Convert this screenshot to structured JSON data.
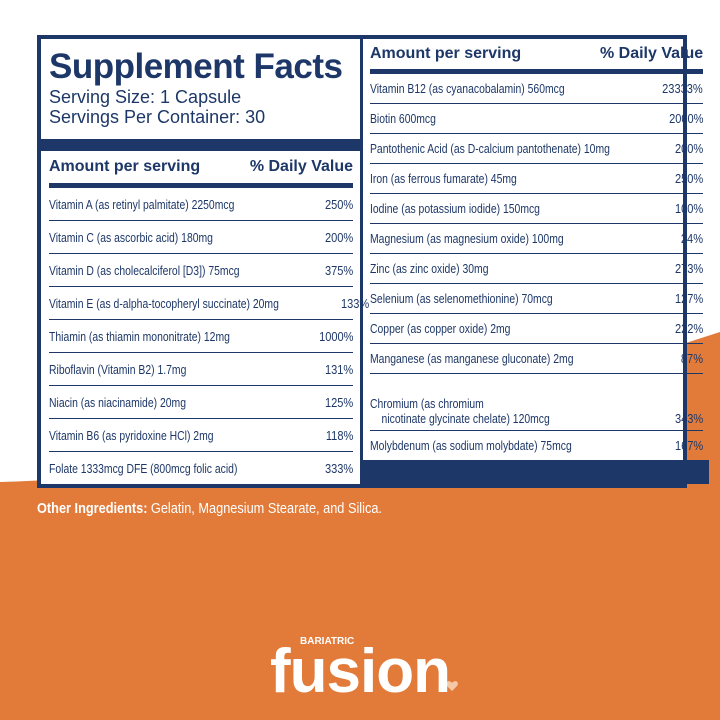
{
  "header": {
    "title": "Supplement Facts",
    "serving_size": "Serving Size: 1 Capsule",
    "servings_per_container": "Servings Per Container: 30"
  },
  "left": {
    "header": {
      "amount": "Amount per serving",
      "dv": "% Daily Value"
    },
    "rows": [
      [
        "Vitamin A (as retinyl palmitate) 2250mcg",
        "250%"
      ],
      [
        "Vitamin C (as ascorbic acid) 180mg",
        "200%"
      ],
      [
        "Vitamin D (as cholecalciferol [D3]) 75mcg",
        "375%"
      ],
      [
        "Vitamin E (as d-alpha-tocopheryl succinate) 20mg",
        "133%"
      ],
      [
        "Thiamin (as thiamin mononitrate) 12mg",
        "1000%"
      ],
      [
        "Riboflavin (Vitamin B2) 1.7mg",
        "131%"
      ],
      [
        "Niacin (as niacinamide) 20mg",
        "125%"
      ],
      [
        "Vitamin B6 (as pyridoxine HCl) 2mg",
        "118%"
      ],
      [
        "Folate 1333mcg DFE (800mcg folic acid)",
        "333%"
      ]
    ]
  },
  "right": {
    "header": {
      "amount": "Amount per serving",
      "dv": "% Daily Value"
    },
    "rows": [
      [
        "Vitamin B12 (as cyanacobalamin) 560mcg",
        "23333%"
      ],
      [
        "Biotin 600mcg",
        "2000%"
      ],
      [
        "Pantothenic Acid (as D-calcium pantothenate) 10mg",
        "200%"
      ],
      [
        "Iron (as ferrous fumarate) 45mg",
        "250%"
      ],
      [
        "Iodine (as potassium iodide) 150mcg",
        "100%"
      ],
      [
        "Magnesium (as magnesium oxide) 100mg",
        "24%"
      ],
      [
        "Zinc (as zinc oxide) 30mg",
        "273%"
      ],
      [
        "Selenium (as selenomethionine) 70mcg",
        "127%"
      ],
      [
        "Copper (as copper oxide) 2mg",
        "222%"
      ],
      [
        "Manganese (as manganese gluconate) 2mg",
        "87%"
      ],
      [
        "Chromium (as chromium\n    nicotinate glycinate chelate) 120mcg",
        "343%"
      ],
      [
        "Molybdenum (as sodium molybdate) 75mcg",
        "167%"
      ]
    ]
  },
  "other_ingredients": {
    "label": "Other Ingredients:",
    "text": "Gelatin, Magnesium Stearate, and Silica."
  },
  "brand": {
    "small": "BARIATRIC",
    "name": "fusion"
  }
}
